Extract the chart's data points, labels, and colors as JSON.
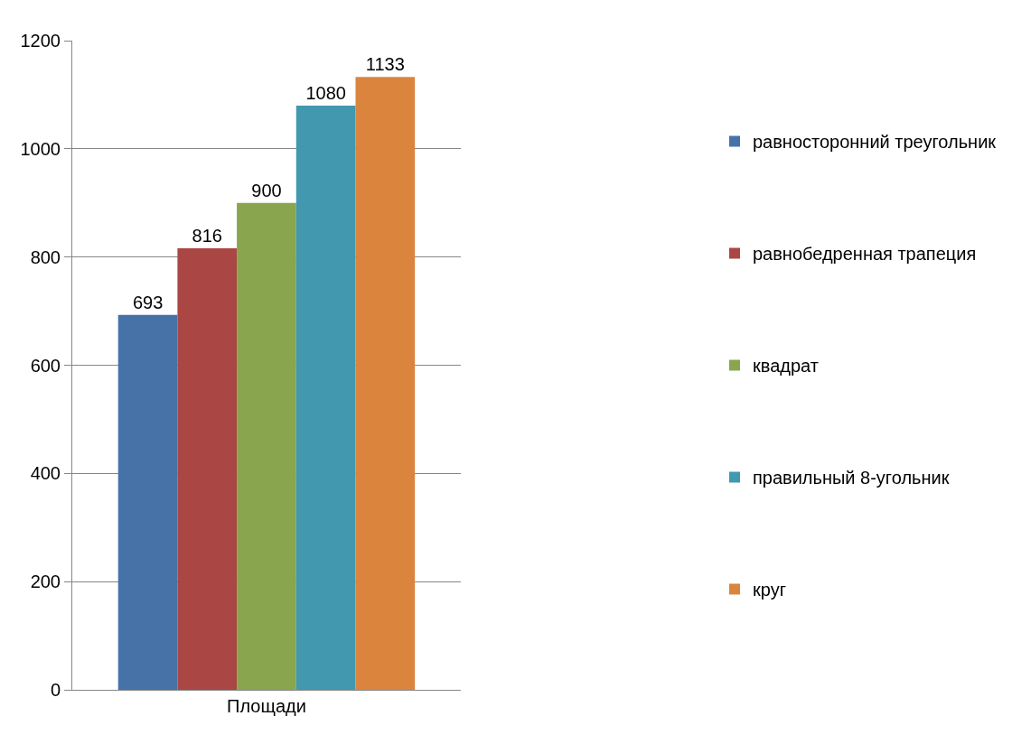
{
  "chart_data": {
    "type": "bar",
    "categories": [
      "Площади"
    ],
    "series": [
      {
        "name": "равносторонний треугольник",
        "color": "#4672a8",
        "values": [
          693
        ]
      },
      {
        "name": "равнобедренная трапеция",
        "color": "#aa4644",
        "values": [
          816
        ]
      },
      {
        "name": "квадрат",
        "color": "#89a54e",
        "values": [
          900
        ]
      },
      {
        "name": "правильный 8-угольник",
        "color": "#4198af",
        "values": [
          1080
        ]
      },
      {
        "name": "круг",
        "color": "#db843d",
        "values": [
          1133
        ]
      }
    ],
    "ylim": [
      0,
      1200
    ],
    "yticks": [
      0,
      200,
      400,
      600,
      800,
      1000,
      1200
    ],
    "grid": "y",
    "legend": "right",
    "data_labels": true
  }
}
